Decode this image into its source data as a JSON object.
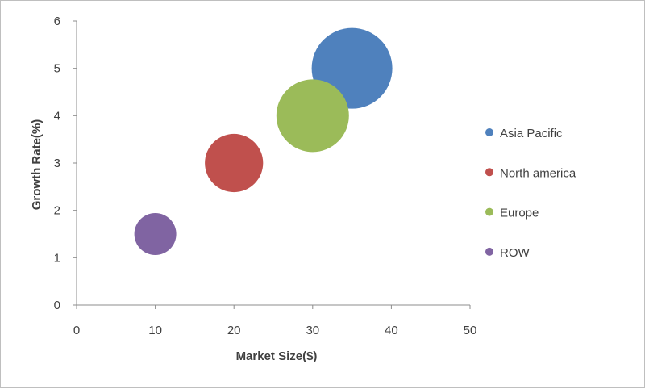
{
  "chart_data": {
    "type": "bubble",
    "title": "",
    "xlabel": "Market Size($)",
    "ylabel": "Growth Rate(%)",
    "xlim": [
      0,
      50
    ],
    "ylim": [
      0,
      6
    ],
    "xticks": [
      0,
      10,
      20,
      30,
      40,
      50
    ],
    "yticks": [
      0,
      1,
      2,
      3,
      4,
      5,
      6
    ],
    "grid": false,
    "legend_position": "right",
    "series": [
      {
        "name": "Asia Pacific",
        "x": 35,
        "y": 5.0,
        "size": 100,
        "color": "#4f81bd"
      },
      {
        "name": "North america",
        "x": 20,
        "y": 3.0,
        "size": 52,
        "color": "#c0504d"
      },
      {
        "name": "Europe",
        "x": 30,
        "y": 4.0,
        "size": 81,
        "color": "#9bbb59"
      },
      {
        "name": "ROW",
        "x": 10,
        "y": 1.5,
        "size": 27,
        "color": "#8064a2"
      }
    ]
  }
}
